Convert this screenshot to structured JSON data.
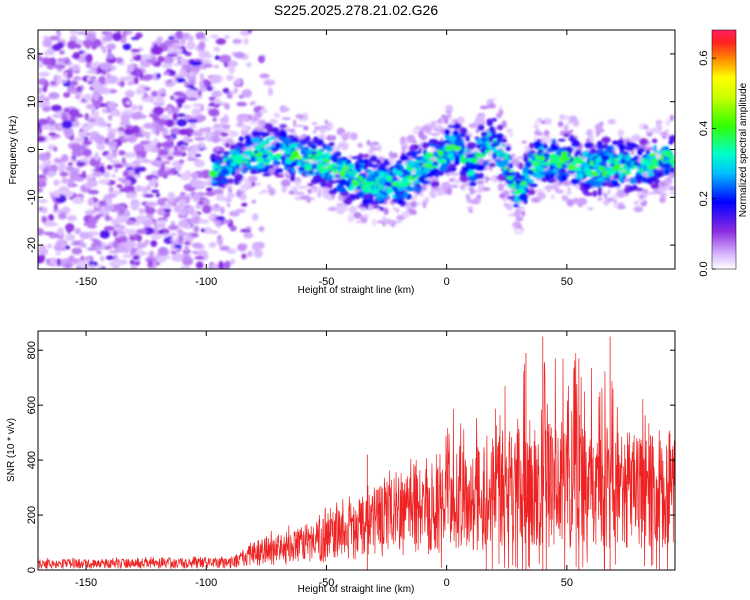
{
  "title": "S225.2025.278.21.02.G26",
  "chart_data": [
    {
      "type": "heatmap",
      "name": "spectrogram",
      "xlabel": "Height of straight line (km)",
      "ylabel": "Frequency (Hz)",
      "xlim": [
        -170,
        95
      ],
      "ylim": [
        -25,
        25
      ],
      "xticks": [
        -150,
        -100,
        -50,
        0,
        50
      ],
      "yticks": [
        -20,
        -10,
        0,
        10,
        20
      ],
      "colorbar": {
        "label": "Normalized spectral amplitude",
        "range": [
          0.0,
          0.68
        ],
        "ticks": [
          0.0,
          0.2,
          0.4,
          0.6
        ],
        "tick_labels": [
          "0.0",
          "0.2",
          "0.4",
          "0.6"
        ]
      },
      "noise_region_x": [
        -170,
        -85
      ],
      "signal_track": {
        "x": [
          -97,
          -90,
          -80,
          -70,
          -60,
          -50,
          -40,
          -30,
          -20,
          -10,
          0,
          5,
          10,
          15,
          20,
          25,
          30,
          35,
          40,
          50,
          60,
          70,
          80,
          90
        ],
        "freq": [
          -5,
          -3,
          -1,
          0,
          -2,
          -3,
          -6,
          -7,
          -7,
          -4,
          0,
          1,
          -4,
          0,
          2,
          -3,
          -10,
          -4,
          -2,
          -2,
          -4,
          -3,
          -4,
          -2
        ],
        "width": [
          4,
          5,
          6,
          6,
          6,
          6,
          6,
          6,
          6,
          6,
          6,
          6,
          6,
          6,
          6,
          6,
          6,
          6,
          6,
          6,
          6,
          6,
          6,
          5
        ]
      }
    },
    {
      "type": "line",
      "name": "snr",
      "xlabel": "Height of straight line (km)",
      "ylabel": "SNR (10 * v/v)",
      "xlim": [
        -170,
        95
      ],
      "ylim": [
        0,
        870
      ],
      "xticks": [
        -150,
        -100,
        -50,
        0,
        50
      ],
      "yticks": [
        0,
        200,
        400,
        600,
        800
      ],
      "color": "#ee2222",
      "envelope": {
        "x": [
          -170,
          -90,
          -80,
          -60,
          -50,
          -40,
          -30,
          -20,
          -10,
          0,
          10,
          20,
          30,
          40,
          50,
          60,
          70,
          80,
          90,
          95
        ],
        "mean": [
          22,
          25,
          60,
          90,
          120,
          140,
          170,
          200,
          230,
          250,
          270,
          290,
          300,
          310,
          310,
          300,
          300,
          290,
          290,
          290
        ],
        "peak": [
          45,
          50,
          120,
          190,
          230,
          280,
          330,
          420,
          520,
          580,
          650,
          720,
          780,
          850,
          850,
          790,
          700,
          650,
          650,
          500
        ]
      },
      "spikes": [
        {
          "x": -33,
          "y": 420
        },
        {
          "x": 40,
          "y": 850
        },
        {
          "x": 68,
          "y": 850
        },
        {
          "x": 55,
          "y": 770
        },
        {
          "x": 33,
          "y": 790
        }
      ]
    }
  ]
}
